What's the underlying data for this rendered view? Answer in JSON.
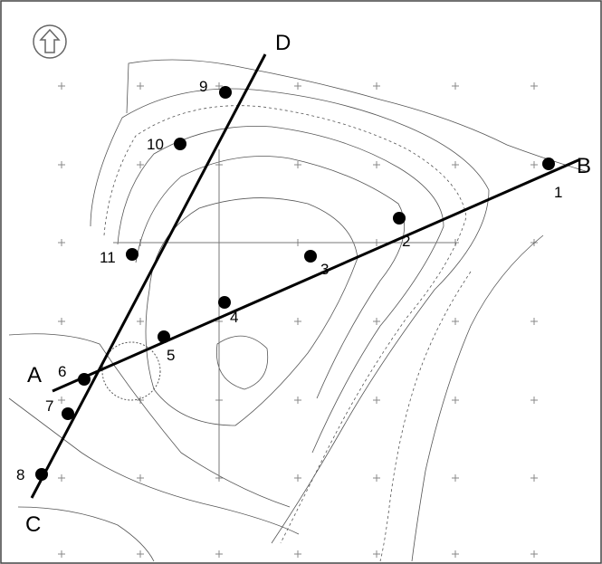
{
  "lines": [
    {
      "start": "A",
      "end": "B"
    },
    {
      "start": "C",
      "end": "D"
    }
  ],
  "points": [
    "1",
    "2",
    "3",
    "4",
    "5",
    "6",
    "7",
    "8",
    "9",
    "10",
    "11"
  ]
}
